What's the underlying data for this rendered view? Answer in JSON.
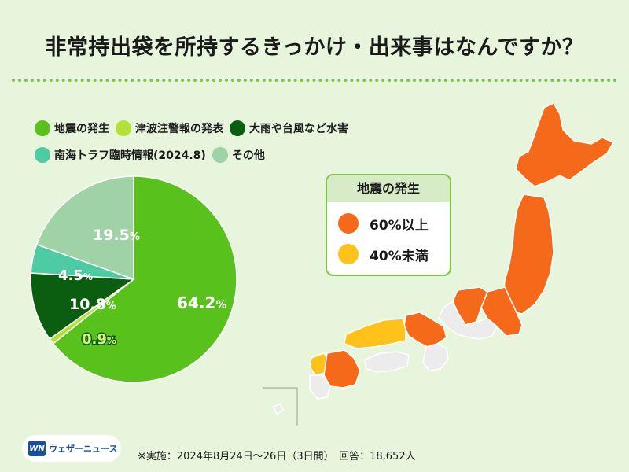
{
  "title": "非常持出袋を所持するきっかけ・出来事はなんですか？",
  "chart_data": {
    "type": "pie",
    "categories": [
      "地震の発生",
      "津波注警報の発表",
      "大雨や台風など水害",
      "南海トラフ臨時情報(2024.8)",
      "その他"
    ],
    "values": [
      64.2,
      0.9,
      10.8,
      4.5,
      19.5
    ],
    "value_labels": [
      "64.2",
      "0.9",
      "10.8",
      "4.5",
      "19.5"
    ],
    "unit": "%",
    "colors": [
      "#58c11b",
      "#b3e03a",
      "#0b5e10",
      "#4dcba2",
      "#9fd3a6"
    ],
    "legend_placement": "top-left"
  },
  "map_legend": {
    "title": "地震の発生",
    "items": [
      {
        "label": "60%以上",
        "color": "#f46a1a"
      },
      {
        "label": "40%未満",
        "color": "#ffc21a"
      }
    ]
  },
  "map_colors": {
    "high": "#f46a1a",
    "low": "#ffc21a",
    "other": "#ececec"
  },
  "footer": {
    "note": "※実施：2024年8月24日〜26日（3日間）　回答：18,652人",
    "logo_text": "ウェザーニュース",
    "logo_mark": "WN"
  }
}
